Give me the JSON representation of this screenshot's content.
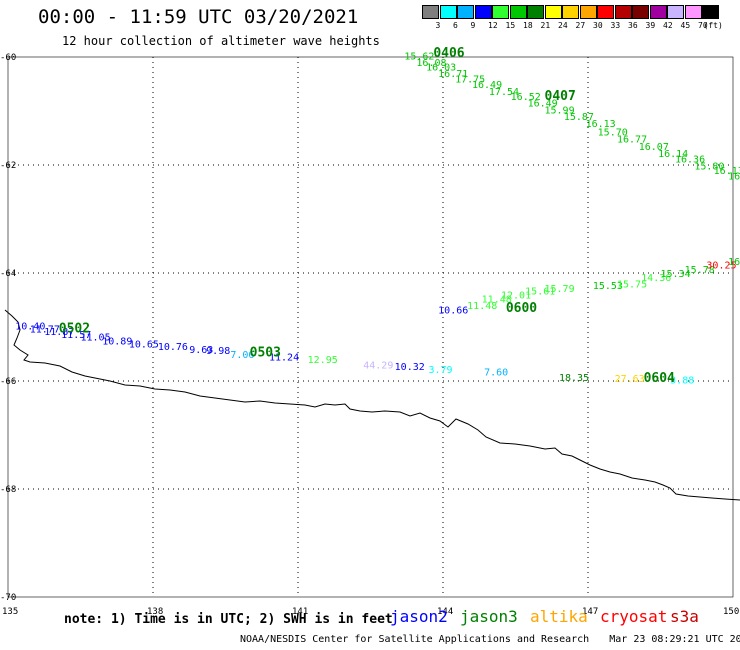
{
  "header": {
    "title": "00:00 - 11:59 UTC 03/20/2021",
    "subtitle": "12 hour collection of altimeter wave heights"
  },
  "legend": {
    "unit": "(ft)",
    "colors": [
      "#7f7f7f",
      "#00ffff",
      "#00b2ff",
      "#0000ff",
      "#32ff32",
      "#00c800",
      "#008000",
      "#ffff00",
      "#ffd200",
      "#ffa500",
      "#ff0000",
      "#b40000",
      "#780000",
      "#a000a0",
      "#c8b4ff",
      "#ff96ff",
      "#000000"
    ],
    "labels": [
      "3",
      "6",
      "9",
      "12",
      "15",
      "18",
      "21",
      "24",
      "27",
      "30",
      "33",
      "36",
      "39",
      "42",
      "45",
      "70"
    ]
  },
  "axes": {
    "x_ticks": [
      "135",
      "138",
      "141",
      "144",
      "147",
      "150"
    ],
    "y_ticks": [
      "-60",
      "-62",
      "-64",
      "-66",
      "-68",
      "-70"
    ]
  },
  "tracks": [
    {
      "time": "0406",
      "label_color": "#008000",
      "points": [
        {
          "lon": 143.2,
          "lat": -60.05,
          "v": "15.62",
          "c": "#00c800"
        },
        {
          "lon": 143.45,
          "lat": -60.17,
          "v": "16.08",
          "c": "#00c800"
        },
        {
          "lon": 143.65,
          "lat": -60.25,
          "v": "16.03",
          "c": "#00c800"
        },
        {
          "lon": 143.9,
          "lat": -60.37,
          "v": "16.71",
          "c": "#00c800"
        },
        {
          "lon": 144.25,
          "lat": -60.47,
          "v": "17.75",
          "c": "#00c800"
        },
        {
          "lon": 144.6,
          "lat": -60.57,
          "v": "16.49",
          "c": "#00c800"
        },
        {
          "lon": 144.95,
          "lat": -60.7,
          "v": "17.54",
          "c": "#00c800"
        },
        {
          "lon": 145.4,
          "lat": -60.8,
          "v": "16.52",
          "c": "#00c800"
        },
        {
          "lon": 145.75,
          "lat": -60.92,
          "v": "16.49",
          "c": "#00c800"
        },
        {
          "lon": 146.1,
          "lat": -61.05,
          "v": "15.99",
          "c": "#00c800"
        },
        {
          "lon": 146.5,
          "lat": -61.17,
          "v": "15.87",
          "c": "#00c800"
        },
        {
          "lon": 146.95,
          "lat": -61.3,
          "v": "16.13",
          "c": "#00c800"
        },
        {
          "lon": 147.2,
          "lat": -61.45,
          "v": "15.70",
          "c": "#00c800"
        },
        {
          "lon": 147.6,
          "lat": -61.58,
          "v": "16.77",
          "c": "#00c800"
        },
        {
          "lon": 148.05,
          "lat": -61.72,
          "v": "16.07",
          "c": "#00c800"
        },
        {
          "lon": 148.45,
          "lat": -61.85,
          "v": "16.14",
          "c": "#00c800"
        },
        {
          "lon": 148.8,
          "lat": -61.95,
          "v": "16.36",
          "c": "#00c800"
        },
        {
          "lon": 149.2,
          "lat": -62.08,
          "v": "15.80",
          "c": "#00c800"
        },
        {
          "lon": 149.6,
          "lat": -62.17,
          "v": "16.13",
          "c": "#00c800"
        },
        {
          "lon": 149.9,
          "lat": -62.27,
          "v": "16.9",
          "c": "#00c800"
        }
      ],
      "labels": [
        {
          "t": "0406",
          "lon": 143.8,
          "lat": -60.0
        },
        {
          "t": "0407",
          "lon": 146.1,
          "lat": -60.8
        }
      ]
    },
    {
      "time": "0600",
      "label_color": "#008000",
      "points": [
        {
          "lon": 143.9,
          "lat": -64.75,
          "v": "10.66",
          "c": "#0000ff"
        },
        {
          "lon": 144.5,
          "lat": -64.67,
          "v": "11.48",
          "c": "#32ff32"
        },
        {
          "lon": 144.8,
          "lat": -64.55,
          "v": "11.48",
          "c": "#32ff32"
        },
        {
          "lon": 145.2,
          "lat": -64.47,
          "v": "12.01",
          "c": "#32ff32"
        },
        {
          "lon": 145.7,
          "lat": -64.4,
          "v": "15.61",
          "c": "#32ff32"
        },
        {
          "lon": 146.1,
          "lat": -64.35,
          "v": "15.79",
          "c": "#32ff32"
        },
        {
          "lon": 147.1,
          "lat": -64.3,
          "v": "15.53",
          "c": "#00c800"
        },
        {
          "lon": 147.6,
          "lat": -64.27,
          "v": "15.75",
          "c": "#32ff32"
        },
        {
          "lon": 148.1,
          "lat": -64.15,
          "v": "14.36",
          "c": "#32ff32"
        },
        {
          "lon": 148.5,
          "lat": -64.07,
          "v": "15.34",
          "c": "#00c800"
        },
        {
          "lon": 149.0,
          "lat": -64.0,
          "v": "15.78",
          "c": "#00c800"
        },
        {
          "lon": 149.45,
          "lat": -63.92,
          "v": "30.25",
          "c": "#ff0000"
        },
        {
          "lon": 149.9,
          "lat": -63.85,
          "v": "16.",
          "c": "#00c800"
        }
      ],
      "labels": [
        {
          "t": "0600",
          "lon": 145.3,
          "lat": -64.72
        }
      ]
    },
    {
      "time": "0502",
      "label_color": "#008000",
      "points": [
        {
          "lon": 135.15,
          "lat": -65.05,
          "v": "10.40",
          "c": "#0000ff"
        },
        {
          "lon": 135.45,
          "lat": -65.1,
          "v": "11.77",
          "c": "#0000ff"
        },
        {
          "lon": 135.75,
          "lat": -65.15,
          "v": "11.87",
          "c": "#0000ff"
        },
        {
          "lon": 136.1,
          "lat": -65.2,
          "v": "11.57",
          "c": "#0000ff"
        },
        {
          "lon": 136.5,
          "lat": -65.25,
          "v": "11.05",
          "c": "#0000ff"
        },
        {
          "lon": 136.95,
          "lat": -65.32,
          "v": "10.89",
          "c": "#0000ff"
        },
        {
          "lon": 137.5,
          "lat": -65.38,
          "v": "10.65",
          "c": "#0000ff"
        },
        {
          "lon": 138.1,
          "lat": -65.43,
          "v": "10.76",
          "c": "#0000ff"
        },
        {
          "lon": 138.75,
          "lat": -65.48,
          "v": "9.63",
          "c": "#0000ff"
        },
        {
          "lon": 139.1,
          "lat": -65.5,
          "v": "9.98",
          "c": "#0000ff"
        },
        {
          "lon": 139.6,
          "lat": -65.57,
          "v": "7.06",
          "c": "#00b2ff"
        },
        {
          "lon": 140.4,
          "lat": -65.62,
          "v": "11.24",
          "c": "#0000ff"
        },
        {
          "lon": 141.2,
          "lat": -65.67,
          "v": "12.95",
          "c": "#32ff32"
        },
        {
          "lon": 142.35,
          "lat": -65.77,
          "v": "44.29",
          "c": "#c8b4ff"
        },
        {
          "lon": 143.0,
          "lat": -65.8,
          "v": "10.32",
          "c": "#0000ff"
        },
        {
          "lon": 143.7,
          "lat": -65.85,
          "v": "3.79",
          "c": "#00ffff"
        },
        {
          "lon": 144.85,
          "lat": -65.9,
          "v": "7.60",
          "c": "#00b2ff"
        },
        {
          "lon": 146.4,
          "lat": -66.0,
          "v": "18.35",
          "c": "#008000"
        },
        {
          "lon": 147.55,
          "lat": -66.02,
          "v": "27.63",
          "c": "#ffd200"
        },
        {
          "lon": 148.7,
          "lat": -66.05,
          "v": "3.88",
          "c": "#00ffff"
        }
      ],
      "labels": [
        {
          "t": "0502",
          "lon": 136.05,
          "lat": -65.1
        },
        {
          "t": "0503",
          "lon": 140.0,
          "lat": -65.55
        },
        {
          "t": "0604",
          "lon": 148.15,
          "lat": -66.02
        }
      ]
    }
  ],
  "satellites": [
    {
      "name": "jason2",
      "color": "#0000ff"
    },
    {
      "name": "jason3",
      "color": "#008000"
    },
    {
      "name": "altika",
      "color": "#ffa500"
    },
    {
      "name": "cryosat",
      "color": "#ff0000"
    },
    {
      "name": "s3a",
      "color": "#c80000"
    }
  ],
  "footer": {
    "note": "note: 1) Time is in UTC; 2) SWH is in feet",
    "credit": "NOAA/NESDIS Center for Satellite Applications and Research",
    "timestamp": "Mar 23 08:29:21 UTC 2021"
  }
}
